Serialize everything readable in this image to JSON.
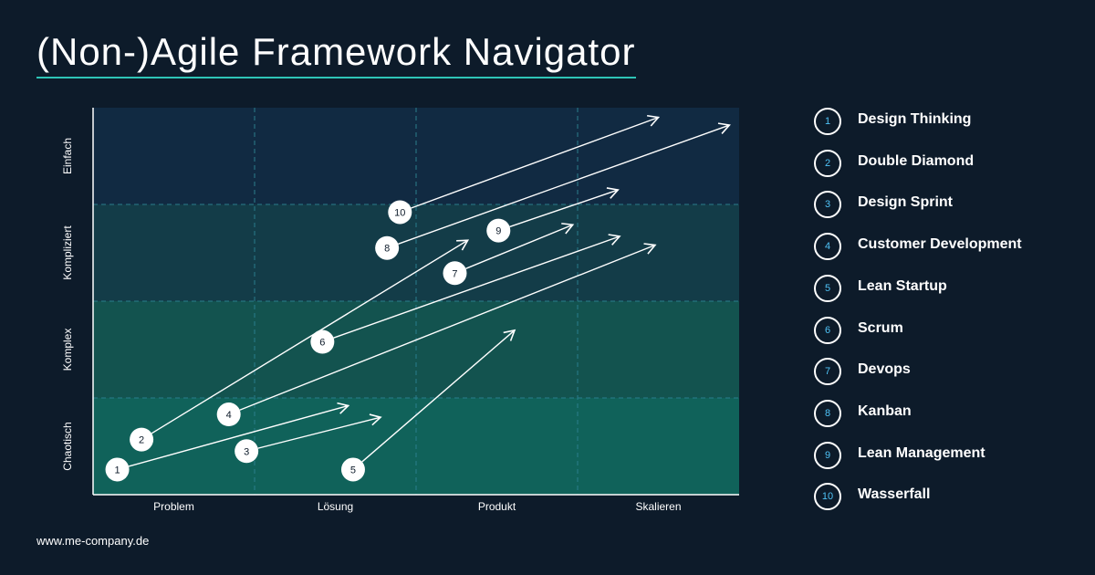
{
  "title": "(Non-)Agile Framework Navigator",
  "footer": "www.me-company.de",
  "colors": {
    "background": "#0d1b2a",
    "row_einfach": "#112a42",
    "row_kompliziert": "#133c48",
    "row_komplex": "#13534f",
    "row_chaotisch": "#10625a",
    "accent": "#2ec4b6",
    "number_text": "#4fc3f7"
  },
  "chart_data": {
    "type": "diagram",
    "x_categories": [
      "Problem",
      "Lösung",
      "Produkt",
      "Skalieren"
    ],
    "y_categories": [
      "Einfach",
      "Kompliziert",
      "Komplex",
      "Chaotisch"
    ],
    "frameworks": [
      {
        "id": "1",
        "x": 0.15,
        "y": 3.74,
        "x_end": 1.58,
        "y_end": 3.08
      },
      {
        "id": "2",
        "x": 0.3,
        "y": 3.43,
        "x_end": 2.32,
        "y_end": 1.37
      },
      {
        "id": "3",
        "x": 0.95,
        "y": 3.55,
        "x_end": 1.78,
        "y_end": 3.2
      },
      {
        "id": "4",
        "x": 0.84,
        "y": 3.17,
        "x_end": 3.48,
        "y_end": 1.42
      },
      {
        "id": "5",
        "x": 1.61,
        "y": 3.74,
        "x_end": 2.61,
        "y_end": 2.3
      },
      {
        "id": "6",
        "x": 1.42,
        "y": 2.42,
        "x_end": 3.26,
        "y_end": 1.33
      },
      {
        "id": "7",
        "x": 2.24,
        "y": 1.71,
        "x_end": 2.97,
        "y_end": 1.21
      },
      {
        "id": "8",
        "x": 1.82,
        "y": 1.45,
        "x_end": 3.94,
        "y_end": 0.18
      },
      {
        "id": "9",
        "x": 2.51,
        "y": 1.27,
        "x_end": 3.25,
        "y_end": 0.85
      },
      {
        "id": "10",
        "x": 1.9,
        "y": 1.08,
        "x_end": 3.5,
        "y_end": 0.1
      }
    ]
  },
  "legend": [
    {
      "num": "1",
      "label": "Design Thinking"
    },
    {
      "num": "2",
      "label": "Double Diamond"
    },
    {
      "num": "3",
      "label": "Design Sprint"
    },
    {
      "num": "4",
      "label": "Customer Development"
    },
    {
      "num": "5",
      "label": "Lean Startup"
    },
    {
      "num": "6",
      "label": "Scrum"
    },
    {
      "num": "7",
      "label": "Devops"
    },
    {
      "num": "8",
      "label": "Kanban"
    },
    {
      "num": "9",
      "label": "Lean Management"
    },
    {
      "num": "10",
      "label": "Wasserfall"
    }
  ]
}
